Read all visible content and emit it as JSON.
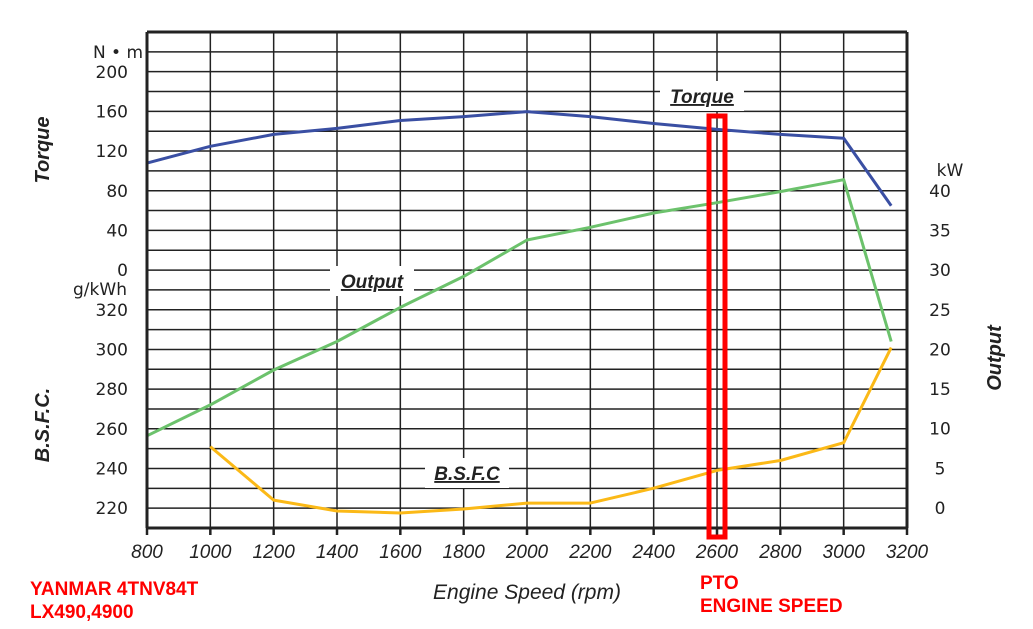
{
  "chart_data": {
    "type": "line",
    "xlabel": "Engine Speed  (rpm)",
    "x_ticks": [
      800,
      1000,
      1200,
      1400,
      1600,
      1800,
      2000,
      2200,
      2400,
      2600,
      2800,
      3000,
      3200
    ],
    "xlim": [
      800,
      3200
    ],
    "grid": true,
    "axes": {
      "torque": {
        "title": "Torque",
        "unit": "N • m",
        "side": "left-upper",
        "ticks": [
          200,
          160,
          120,
          80,
          40,
          0
        ],
        "range": [
          0,
          200
        ]
      },
      "bsfc": {
        "title": "B.S.F.C.",
        "unit": "g/kWh",
        "side": "left-lower",
        "ticks": [
          320,
          300,
          280,
          260,
          240,
          220
        ],
        "range": [
          220,
          320
        ]
      },
      "output": {
        "title": "Output",
        "unit": "kW",
        "side": "right",
        "ticks": [
          40,
          35,
          30,
          25,
          20,
          15,
          10,
          5,
          0
        ],
        "range": [
          0,
          40
        ]
      }
    },
    "series": [
      {
        "name": "Torque",
        "axis": "torque",
        "color": "#3a4fa3",
        "x": [
          800,
          1000,
          1200,
          1400,
          1600,
          1800,
          2000,
          2200,
          2400,
          2600,
          2800,
          3000,
          3150
        ],
        "y": [
          108,
          125,
          137,
          143,
          151,
          155,
          160,
          155,
          148,
          142,
          137,
          133,
          65
        ]
      },
      {
        "name": "Output",
        "axis": "output",
        "color": "#6cc26c",
        "x": [
          800,
          1000,
          1200,
          1400,
          1600,
          1800,
          2000,
          2200,
          2400,
          2600,
          2800,
          3000,
          3150
        ],
        "y": [
          9.1,
          13.0,
          17.4,
          21.0,
          25.3,
          29.2,
          33.8,
          35.4,
          37.2,
          38.5,
          39.9,
          41.4,
          21.0
        ]
      },
      {
        "name": "B.S.F.C",
        "axis": "bsfc",
        "color": "#fbb917",
        "x": [
          1000,
          1200,
          1400,
          1600,
          1800,
          2000,
          2200,
          2400,
          2600,
          2800,
          3000,
          3150
        ],
        "y": [
          251,
          224,
          218.5,
          217.5,
          219.5,
          222.5,
          222.5,
          230,
          239,
          244,
          253,
          301
        ]
      }
    ],
    "highlight": {
      "rpm": 2600,
      "color": "#ff0000"
    }
  },
  "annotations": {
    "model_line1": "YANMAR 4TNV84T",
    "model_line2": "LX490,4900",
    "pto_line1": "PTO",
    "pto_line2": "ENGINE SPEED"
  }
}
